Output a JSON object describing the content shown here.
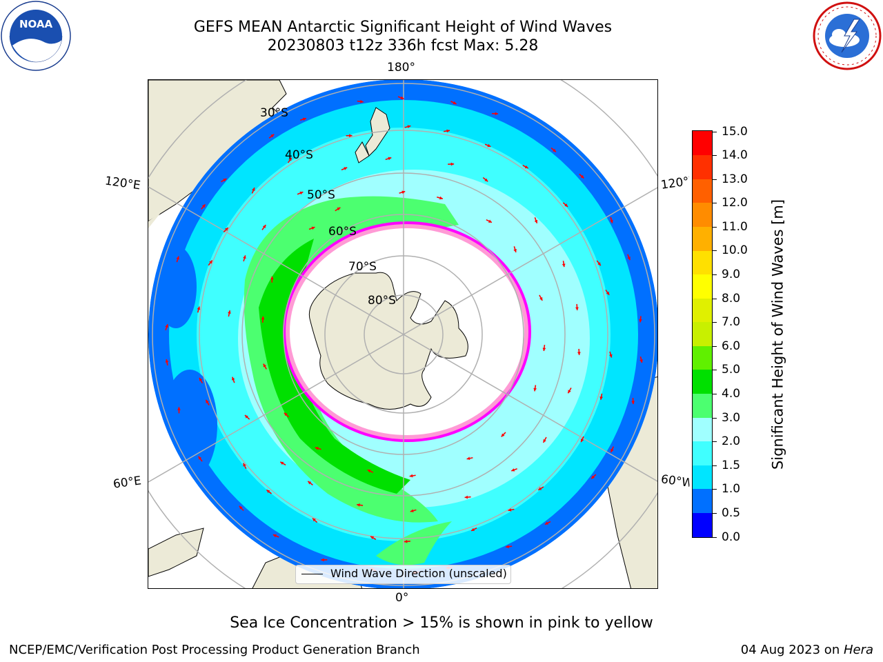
{
  "header": {
    "title_line1": "GEFS MEAN Antarctic Significant Height of Wind Waves",
    "title_line2": "20230803 t12z 336h fcst   Max: 5.28"
  },
  "logos": {
    "left": {
      "text": "NOAA",
      "ring_text": "NATIONAL OCEANIC AND ATMOSPHERIC ADMINISTRATION",
      "icon": "noaa-logo-icon"
    },
    "right": {
      "ring_text": "NATIONAL WEATHER SERVICE",
      "icon": "nws-logo-icon"
    }
  },
  "map": {
    "projection": "south-polar-stereographic",
    "longitude_labels": {
      "top": "180°",
      "bottom": "0°",
      "upper_left": "120°E",
      "upper_right": "120°W",
      "lower_left": "60°E",
      "lower_right": "60°W"
    },
    "latitude_labels": [
      "30°S",
      "40°S",
      "50°S",
      "60°S",
      "70°S",
      "80°S"
    ],
    "colors": {
      "land": "#ecead7",
      "ocean_edge": "#ffffff",
      "ice_edge": "#ff00ff",
      "arrow": "#ff0000",
      "grid": "#b0b0b0"
    },
    "legend": {
      "line_label": "Wind Wave Direction (unscaled)"
    }
  },
  "colorbar": {
    "title": "Significant Height of Wind Waves [m]",
    "ticks": [
      "0.0",
      "0.5",
      "1.0",
      "1.5",
      "2.0",
      "3.0",
      "4.0",
      "5.0",
      "6.0",
      "7.0",
      "8.0",
      "9.0",
      "10.0",
      "11.0",
      "12.0",
      "13.0",
      "14.0",
      "15.0"
    ],
    "colors": [
      "#0000ff",
      "#0070ff",
      "#00e5ff",
      "#40ffff",
      "#a0ffff",
      "#4cff70",
      "#00e000",
      "#60f000",
      "#c8f000",
      "#e0f000",
      "#ffff00",
      "#ffe000",
      "#ffb000",
      "#ff8c00",
      "#ff6000",
      "#ff3000",
      "#ff0000"
    ]
  },
  "note": "Sea Ice Concentration > 15% is shown in pink to yellow",
  "footer": {
    "left": "NCEP/EMC/Verification Post Processing Product Generation Branch",
    "right_date": "04 Aug 2023 on ",
    "right_machine": "Hera"
  }
}
